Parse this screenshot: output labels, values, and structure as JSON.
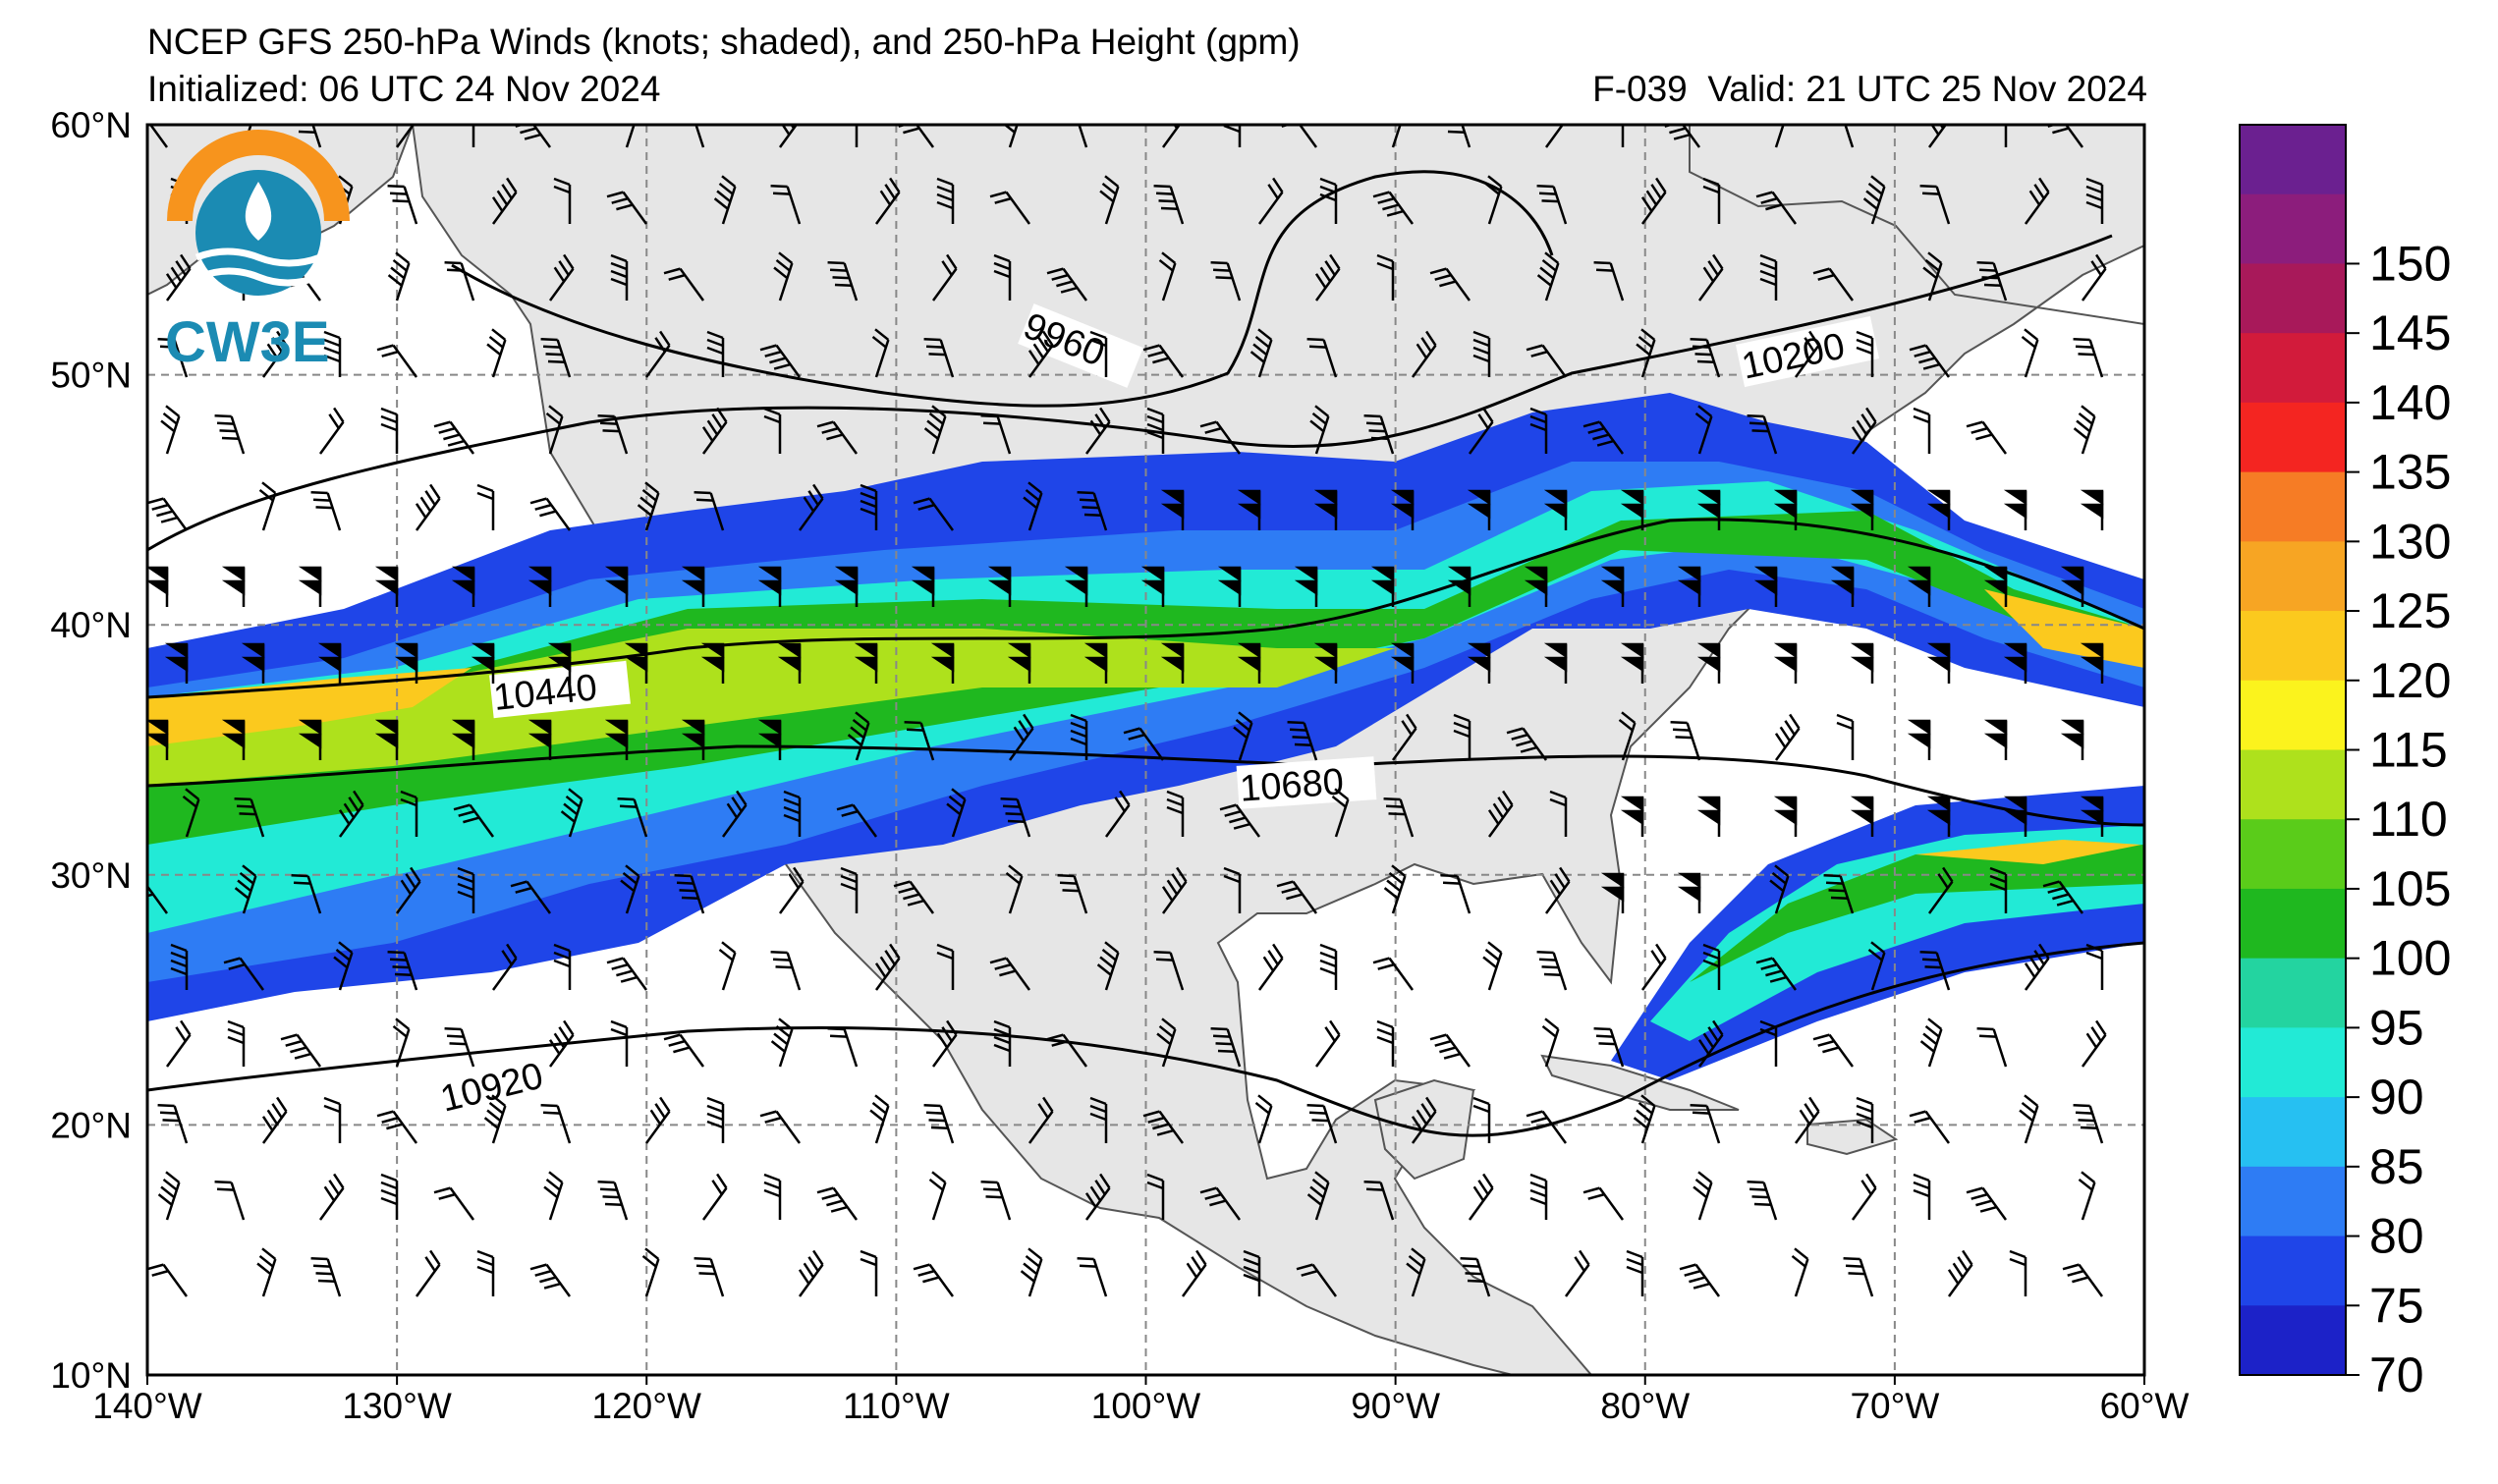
{
  "header": {
    "title": "NCEP GFS 250-hPa Winds (knots; shaded), and 250-hPa Height (gpm)",
    "initialized": "Initialized: 06 UTC 24 Nov 2024",
    "forecast": "F-039",
    "valid": "Valid: 21 UTC 25 Nov 2024"
  },
  "logo": {
    "text": "CW3E",
    "colors": {
      "sun": "#f7941d",
      "waves": "#1b8bb3"
    }
  },
  "map": {
    "lon_range": [
      -140,
      -60
    ],
    "lat_range": [
      10,
      60
    ],
    "lon_ticks": [
      "140°W",
      "130°W",
      "120°W",
      "110°W",
      "100°W",
      "90°W",
      "80°W",
      "70°W",
      "60°W"
    ],
    "lat_ticks": [
      "10°N",
      "20°N",
      "30°N",
      "40°N",
      "50°N",
      "60°N"
    ],
    "land_color": "#e6e6e6",
    "contour_labels": [
      "9960",
      "10200",
      "10440",
      "10680",
      "10920"
    ]
  },
  "colorbar": {
    "ticks": [
      "70",
      "75",
      "80",
      "85",
      "90",
      "95",
      "100",
      "105",
      "110",
      "115",
      "120",
      "125",
      "130",
      "135",
      "140",
      "145",
      "150"
    ],
    "colors": [
      "#1c22c8",
      "#1f45e8",
      "#2e7cf4",
      "#26c0f2",
      "#22ead6",
      "#23d4a0",
      "#1fb81f",
      "#5acc1a",
      "#aee11c",
      "#fbf31d",
      "#fbc91e",
      "#f7a523",
      "#f67c25",
      "#f42521",
      "#d21b3b",
      "#a8195a",
      "#8c1d7c",
      "#6b2090"
    ]
  }
}
